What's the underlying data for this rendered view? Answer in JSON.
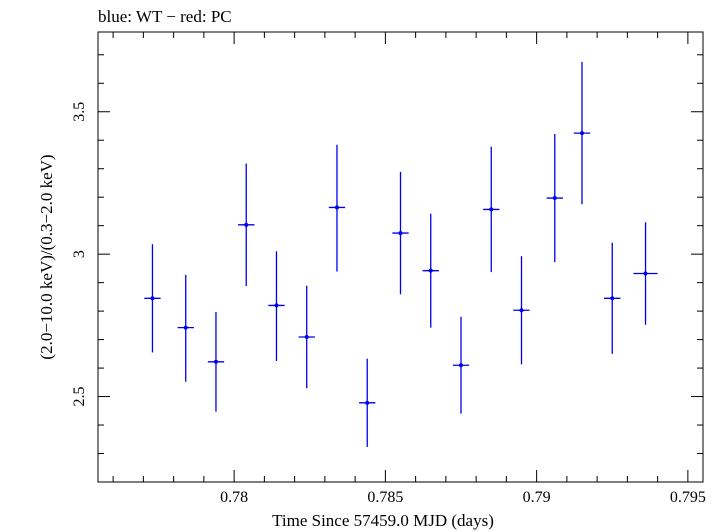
{
  "chart_data": {
    "type": "scatter",
    "title": "blue: WT − red: PC",
    "xlabel": "Time Since 57459.0 MJD (days)",
    "ylabel": "(2.0−10.0 keV)/(0.3−2.0 keV)",
    "xlim": [
      0.7755,
      0.7955
    ],
    "ylim": [
      2.2,
      3.78
    ],
    "x_ticks": [
      0.78,
      0.785,
      0.79,
      0.795
    ],
    "x_tick_labels": [
      "0.78",
      "0.785",
      "0.79",
      "0.795"
    ],
    "y_ticks": [
      2.5,
      3,
      3.5
    ],
    "y_tick_labels": [
      "2.5",
      "3",
      "3.5"
    ],
    "grid": false,
    "series": [
      {
        "name": "WT",
        "color": "#0000ee",
        "points": [
          {
            "x": 0.7773,
            "xerr": 0.00027,
            "y": 2.845,
            "yerr_low": 0.19,
            "yerr_high": 0.19
          },
          {
            "x": 0.7784,
            "xerr": 0.00027,
            "y": 2.742,
            "yerr_low": 0.19,
            "yerr_high": 0.185
          },
          {
            "x": 0.7794,
            "xerr": 0.00027,
            "y": 2.622,
            "yerr_low": 0.175,
            "yerr_high": 0.175
          },
          {
            "x": 0.7804,
            "xerr": 0.00027,
            "y": 3.103,
            "yerr_low": 0.215,
            "yerr_high": 0.215
          },
          {
            "x": 0.7814,
            "xerr": 0.00027,
            "y": 2.82,
            "yerr_low": 0.195,
            "yerr_high": 0.19
          },
          {
            "x": 0.7824,
            "xerr": 0.00027,
            "y": 2.709,
            "yerr_low": 0.18,
            "yerr_high": 0.18
          },
          {
            "x": 0.7834,
            "xerr": 0.00027,
            "y": 3.164,
            "yerr_low": 0.225,
            "yerr_high": 0.22
          },
          {
            "x": 0.7844,
            "xerr": 0.00027,
            "y": 2.478,
            "yerr_low": 0.155,
            "yerr_high": 0.155
          },
          {
            "x": 0.7855,
            "xerr": 0.00027,
            "y": 3.074,
            "yerr_low": 0.215,
            "yerr_high": 0.215
          },
          {
            "x": 0.7865,
            "xerr": 0.00027,
            "y": 2.942,
            "yerr_low": 0.2,
            "yerr_high": 0.2
          },
          {
            "x": 0.7875,
            "xerr": 0.00027,
            "y": 2.61,
            "yerr_low": 0.17,
            "yerr_high": 0.17
          },
          {
            "x": 0.7885,
            "xerr": 0.00027,
            "y": 3.157,
            "yerr_low": 0.22,
            "yerr_high": 0.22
          },
          {
            "x": 0.7895,
            "xerr": 0.00027,
            "y": 2.803,
            "yerr_low": 0.19,
            "yerr_high": 0.19
          },
          {
            "x": 0.7906,
            "xerr": 0.00027,
            "y": 3.197,
            "yerr_low": 0.225,
            "yerr_high": 0.225
          },
          {
            "x": 0.7915,
            "xerr": 0.00027,
            "y": 3.425,
            "yerr_low": 0.25,
            "yerr_high": 0.25
          },
          {
            "x": 0.7925,
            "xerr": 0.00027,
            "y": 2.845,
            "yerr_low": 0.195,
            "yerr_high": 0.195
          },
          {
            "x": 0.7936,
            "xerr": 0.0004,
            "y": 2.932,
            "yerr_low": 0.18,
            "yerr_high": 0.18
          }
        ]
      }
    ]
  }
}
